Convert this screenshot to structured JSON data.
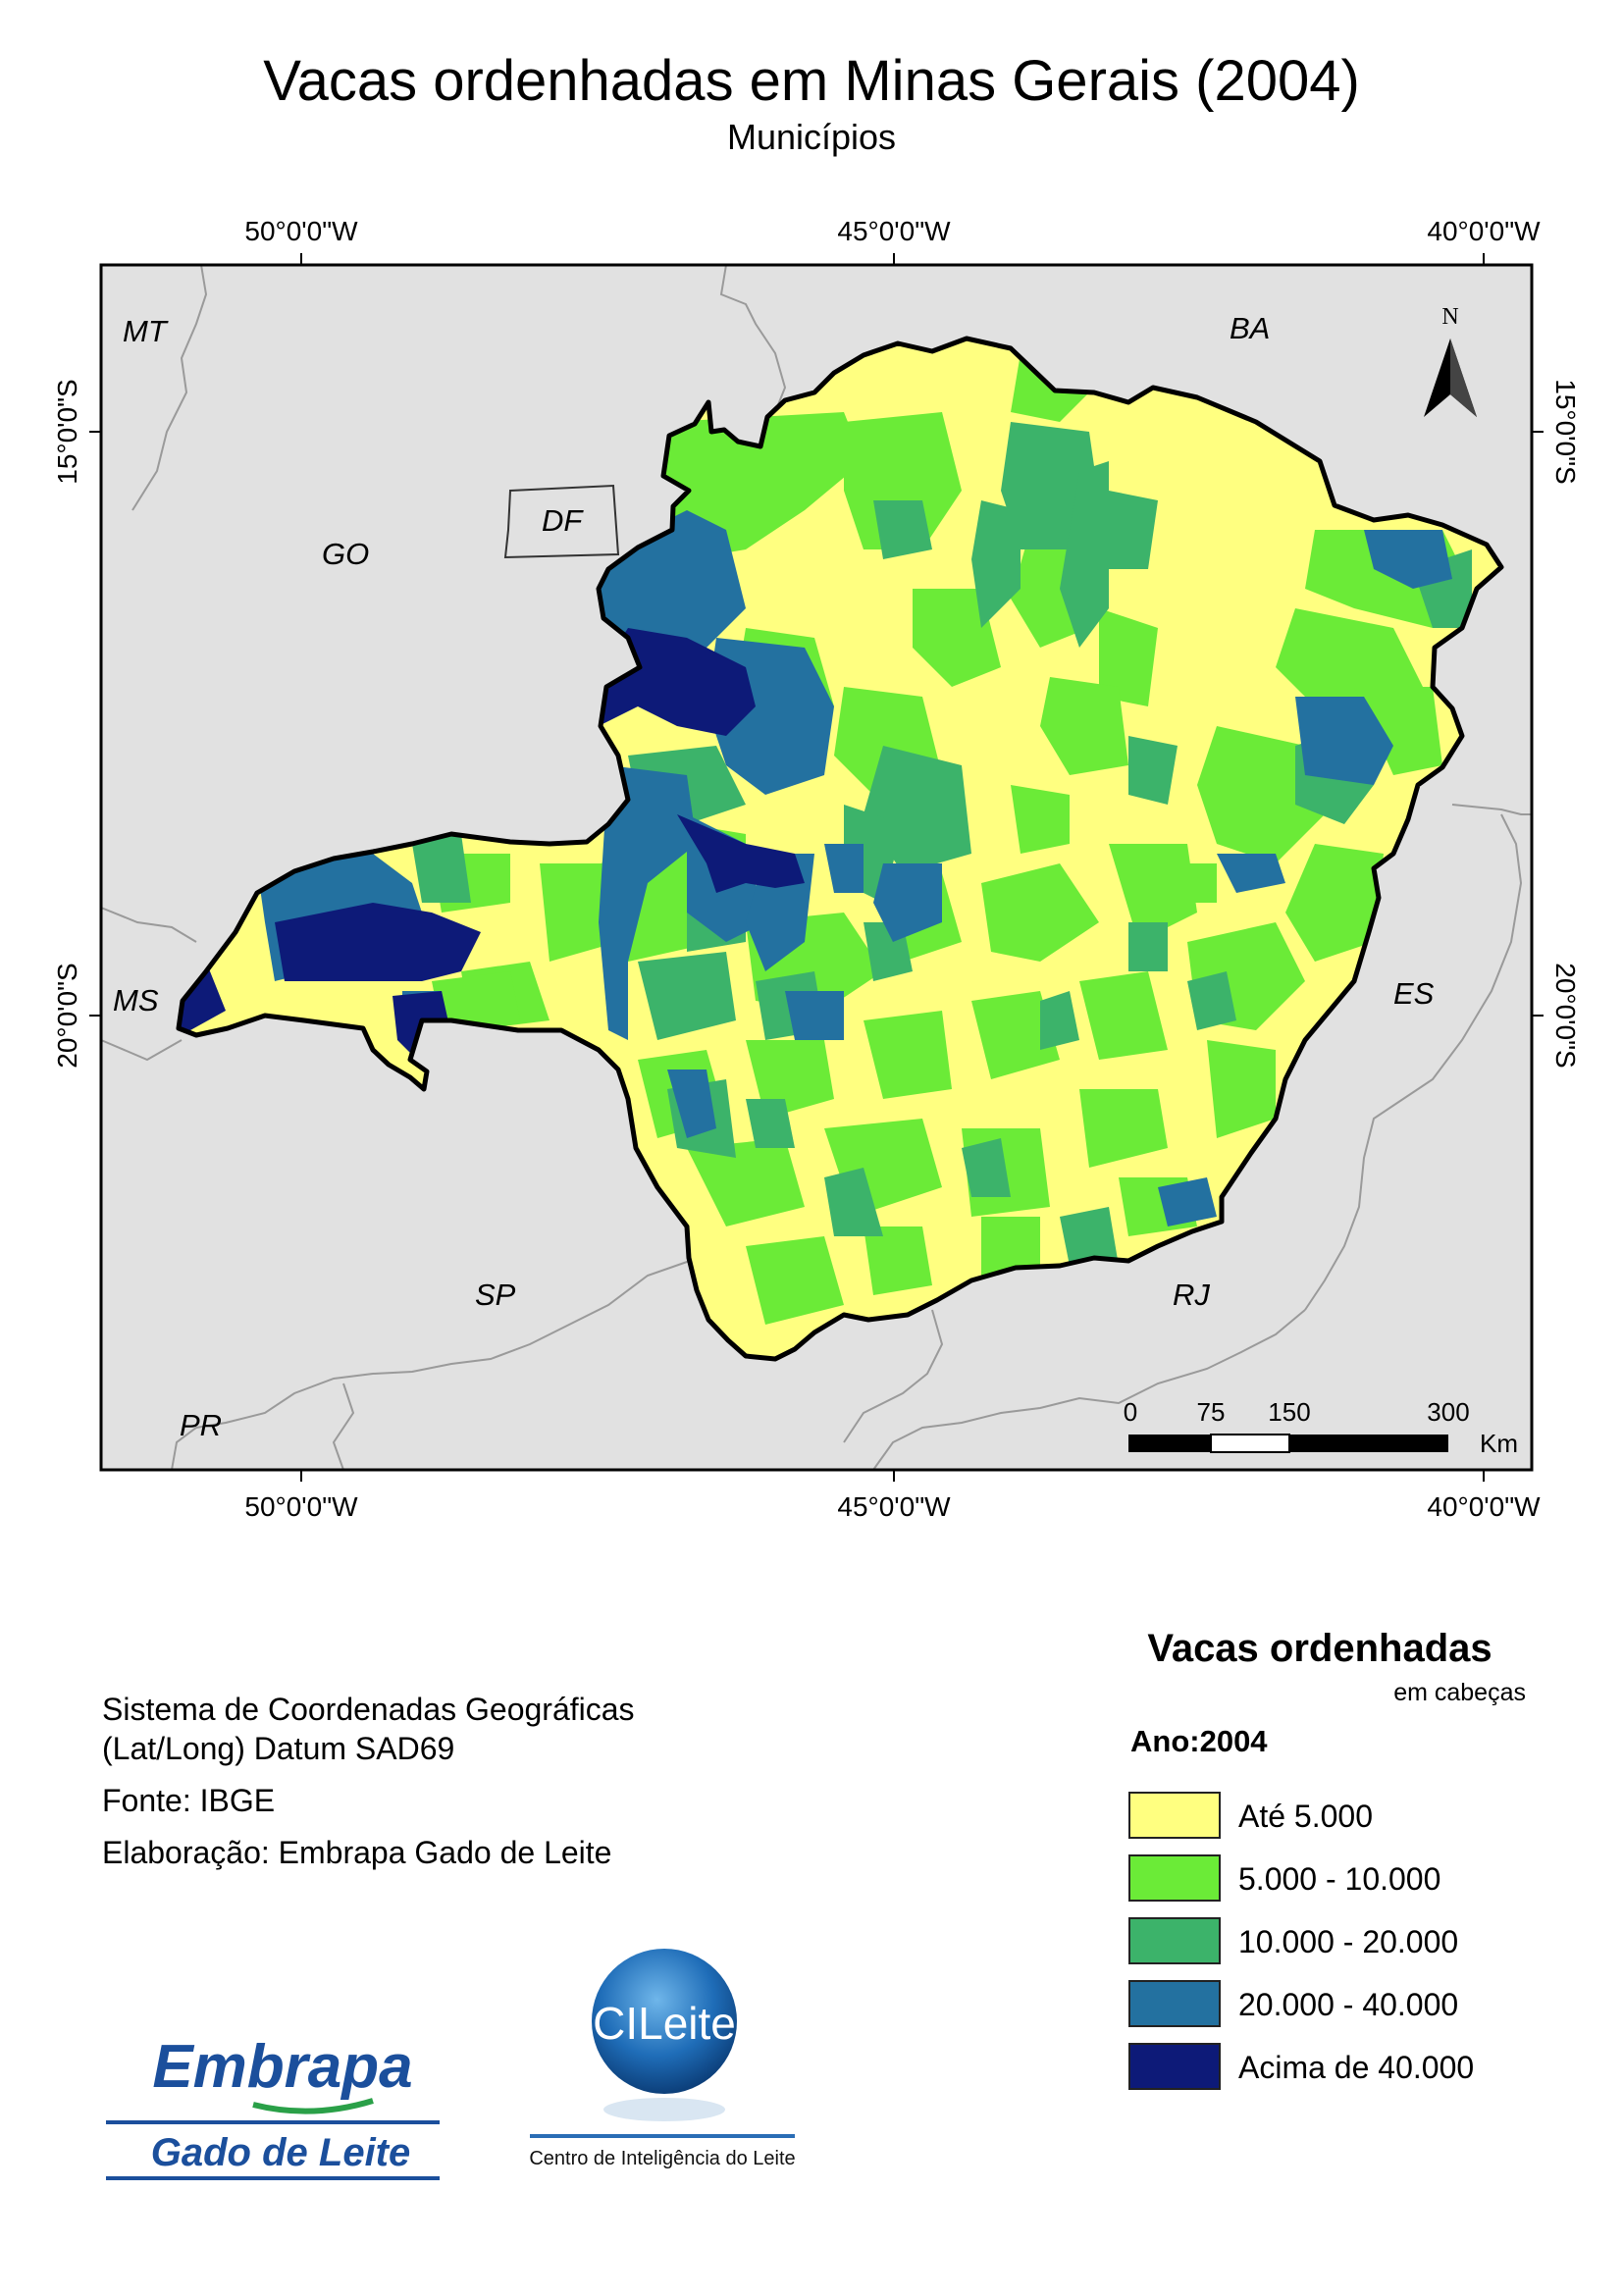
{
  "title": "Vacas ordenhadas em Minas Gerais (2004)",
  "subtitle": "Municípios",
  "graticule": {
    "lon_labels": [
      "50°0'0\"W",
      "45°0'0\"W",
      "40°0'0\"W"
    ],
    "lat_labels": [
      "15°0'0\"S",
      "20°0'0\"S"
    ]
  },
  "neighbors": {
    "mt": "MT",
    "ba": "BA",
    "go": "GO",
    "df": "DF",
    "ms": "MS",
    "es": "ES",
    "sp": "SP",
    "rj": "RJ",
    "pr": "PR"
  },
  "north_arrow": {
    "label": "N"
  },
  "scale_bar": {
    "ticks": [
      "0",
      "75",
      "150",
      "300"
    ],
    "unit": "Km"
  },
  "credits": {
    "line1": "Sistema de Coordenadas Geográficas",
    "line2": "(Lat/Long) Datum SAD69",
    "source": "Fonte: IBGE",
    "made_by": "Elaboração: Embrapa Gado de Leite"
  },
  "legend": {
    "title": "Vacas ordenhadas",
    "unit": "em cabeças",
    "year": "Ano:2004",
    "classes": [
      {
        "label": "Até 5.000",
        "color": "#ffff80"
      },
      {
        "label": "5.000 - 10.000",
        "color": "#6beb37"
      },
      {
        "label": "10.000 - 20.000",
        "color": "#3cb36a"
      },
      {
        "label": "20.000 - 40.000",
        "color": "#2371a0"
      },
      {
        "label": "Acima de 40.000",
        "color": "#0d1a78"
      }
    ]
  },
  "logos": {
    "embrapa_top": "Embrapa",
    "embrapa_bottom": "Gado de Leite",
    "cileite": "CILeite",
    "cileite_caption": "Centro de Inteligência do Leite"
  },
  "colors": {
    "background_states": "#e1e1e1",
    "state_border": "#000000"
  }
}
